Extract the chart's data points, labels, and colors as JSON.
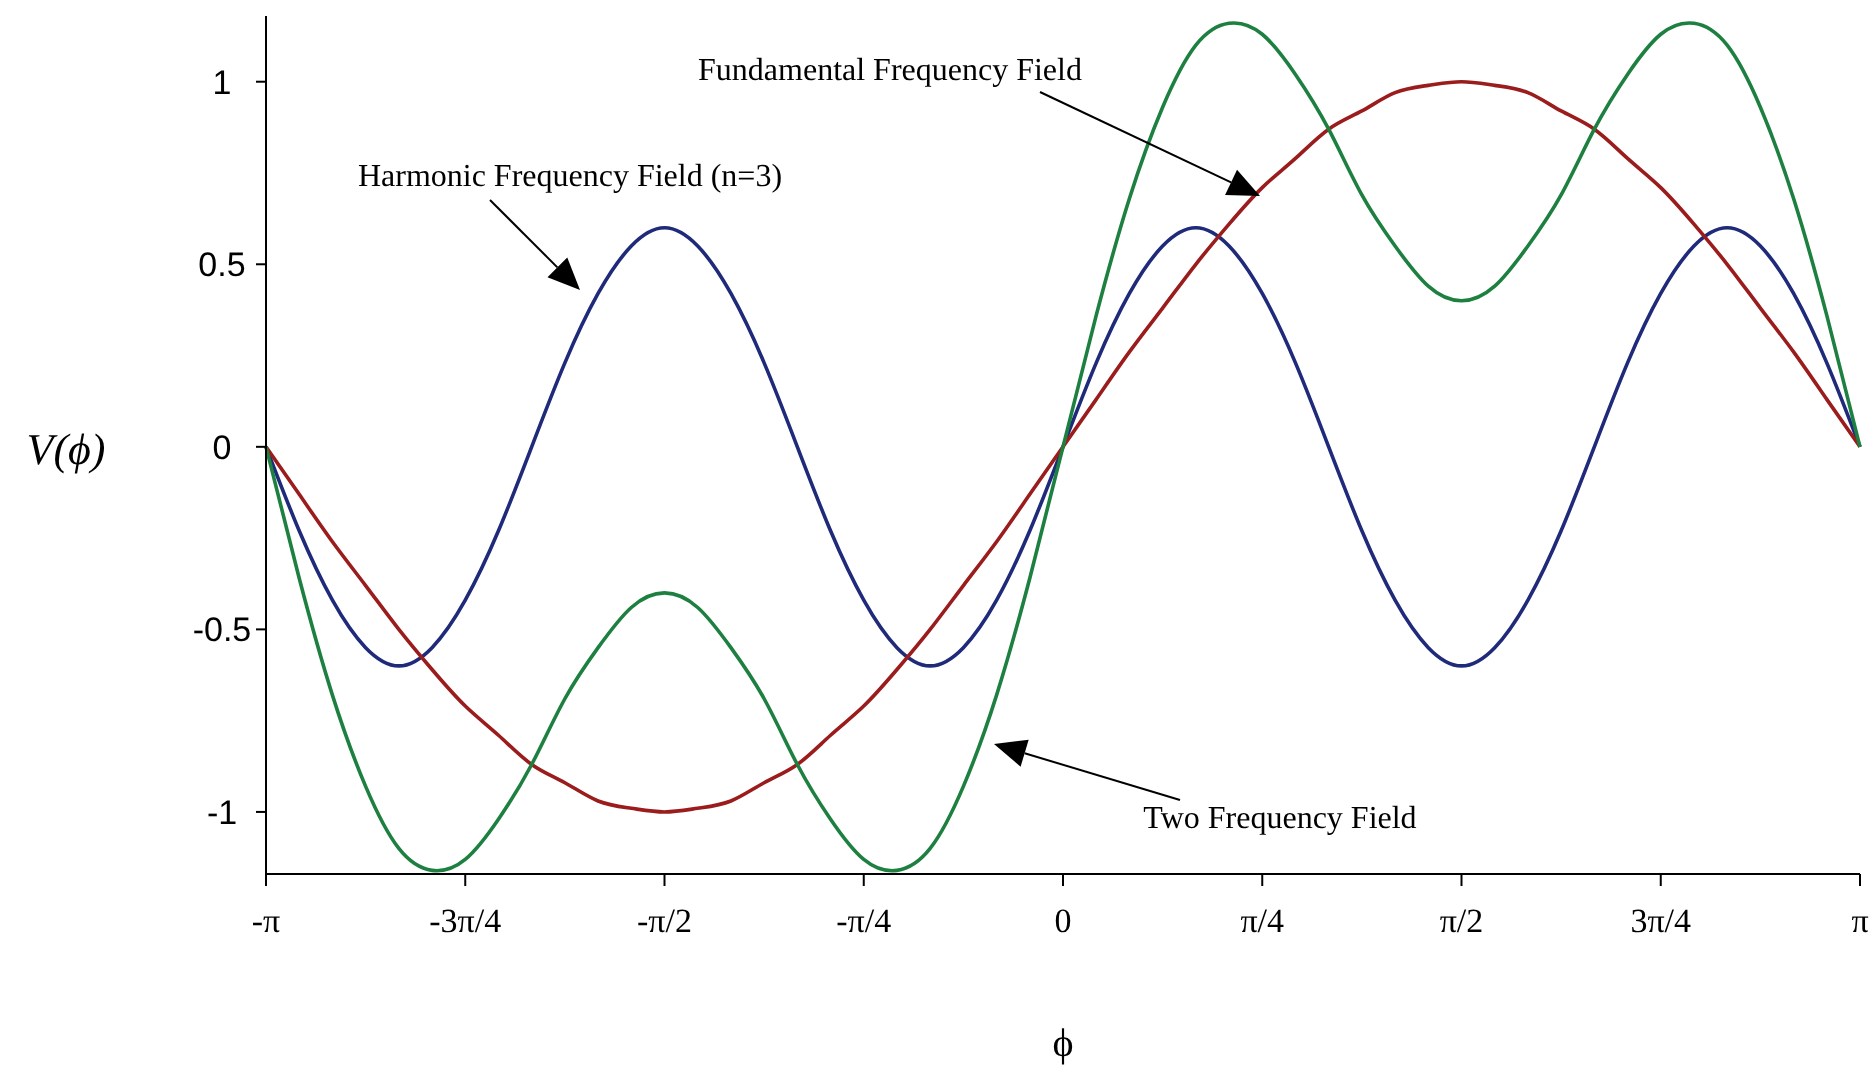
{
  "chart_data": {
    "type": "line",
    "xlabel": "ϕ",
    "ylabel": "V(ϕ)",
    "x": [
      -3.1416,
      -3.0107,
      -2.8798,
      -2.7489,
      -2.618,
      -2.4871,
      -2.3562,
      -2.2253,
      -2.0944,
      -1.9635,
      -1.8326,
      -1.7017,
      -1.5708,
      -1.4399,
      -1.309,
      -1.1781,
      -1.0472,
      -0.9163,
      -0.7854,
      -0.6545,
      -0.5236,
      -0.3927,
      -0.2618,
      -0.1309,
      0,
      0.1309,
      0.2618,
      0.3927,
      0.5236,
      0.6545,
      0.7854,
      0.9163,
      1.0472,
      1.1781,
      1.309,
      1.4399,
      1.5708,
      1.7017,
      1.8326,
      1.9635,
      2.0944,
      2.2253,
      2.3562,
      2.4871,
      2.618,
      2.7489,
      2.8798,
      3.0107,
      3.1416
    ],
    "series": [
      {
        "color": "#1f2a7a",
        "values": [
          0,
          -0.23,
          -0.42,
          -0.55,
          -0.6,
          -0.55,
          -0.42,
          -0.23,
          0,
          0.23,
          0.42,
          0.55,
          0.6,
          0.55,
          0.42,
          0.23,
          0,
          -0.23,
          -0.42,
          -0.55,
          -0.6,
          -0.55,
          -0.42,
          -0.23,
          0,
          0.23,
          0.42,
          0.55,
          0.6,
          0.55,
          0.42,
          0.23,
          0,
          -0.23,
          -0.42,
          -0.55,
          -0.6,
          -0.55,
          -0.42,
          -0.23,
          0,
          0.23,
          0.42,
          0.55,
          0.6,
          0.55,
          0.42,
          0.23,
          0
        ]
      },
      {
        "color": "#9b1c1c",
        "values": [
          0,
          -0.13,
          -0.26,
          -0.38,
          -0.5,
          -0.61,
          -0.71,
          -0.79,
          -0.87,
          -0.92,
          -0.97,
          -0.99,
          -1,
          -0.99,
          -0.97,
          -0.92,
          -0.87,
          -0.79,
          -0.71,
          -0.61,
          -0.5,
          -0.38,
          -0.26,
          -0.13,
          0,
          0.13,
          0.26,
          0.38,
          0.5,
          0.61,
          0.71,
          0.79,
          0.87,
          0.92,
          0.97,
          0.99,
          1,
          0.99,
          0.97,
          0.92,
          0.87,
          0.79,
          0.71,
          0.61,
          0.5,
          0.38,
          0.26,
          0.13,
          0
        ]
      },
      {
        "color": "#1e8040",
        "values": [
          0,
          -0.36,
          -0.68,
          -0.93,
          -1.1,
          -1.16,
          -1.13,
          -1.02,
          -0.87,
          -0.69,
          -0.55,
          -0.44,
          -0.4,
          -0.44,
          -0.55,
          -0.69,
          -0.87,
          -1.02,
          -1.13,
          -1.16,
          -1.1,
          -0.93,
          -0.68,
          -0.36,
          0,
          0.36,
          0.68,
          0.93,
          1.1,
          1.16,
          1.13,
          1.02,
          0.87,
          0.69,
          0.55,
          0.44,
          0.4,
          0.44,
          0.55,
          0.69,
          0.87,
          1.02,
          1.13,
          1.16,
          1.1,
          0.93,
          0.68,
          0.36,
          0
        ]
      }
    ],
    "xlim": [
      -3.1416,
      3.1416
    ],
    "xticks": [
      {
        "value": -3.1416,
        "label": "-π"
      },
      {
        "value": -2.3562,
        "label": "-3π/4"
      },
      {
        "value": -1.5708,
        "label": "-π/2"
      },
      {
        "value": -0.7854,
        "label": "-π/4"
      },
      0,
      {
        "value": 0.7854,
        "label": "π/4"
      },
      {
        "value": 1.5708,
        "label": "π/2"
      },
      {
        "value": 2.3562,
        "label": "3π/4"
      },
      {
        "value": 3.1416,
        "label": "π"
      }
    ],
    "ylim": [
      -1.17,
      1.18
    ],
    "yticks": [
      -1,
      -0.5,
      0,
      0.5,
      1
    ],
    "grid": false,
    "marker": "none",
    "line_style": "solid",
    "annotations": [
      "Fundamental Frequency Field",
      "Harmonic Frequency Field (n=3)",
      "Two Frequency Field"
    ]
  }
}
